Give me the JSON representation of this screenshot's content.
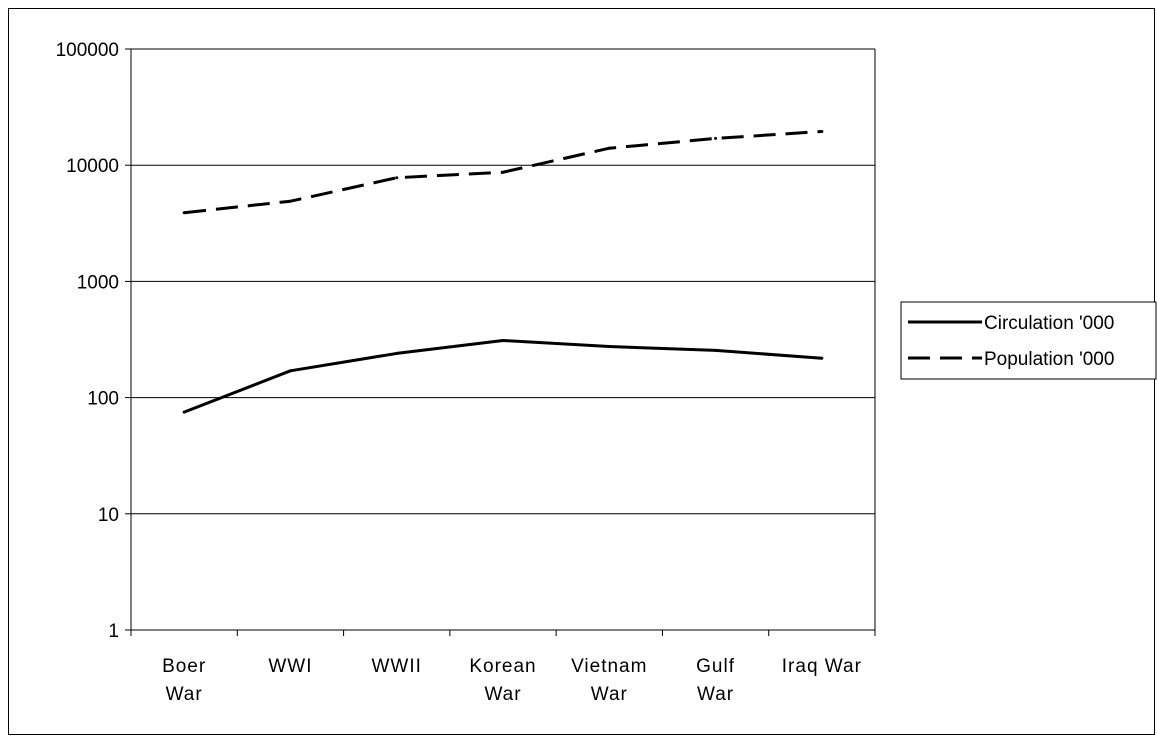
{
  "chart_data": {
    "type": "line",
    "title": "",
    "xlabel": "",
    "ylabel": "",
    "yscale": "log",
    "ylim": [
      1,
      100000
    ],
    "yticks": [
      "1",
      "10",
      "100",
      "1000",
      "10000",
      "100000"
    ],
    "yticks_values": [
      1,
      10,
      100,
      1000,
      10000,
      100000
    ],
    "categories": [
      [
        "Boer",
        "War"
      ],
      [
        "WWI"
      ],
      [
        "WWII"
      ],
      [
        "Korean",
        "War"
      ],
      [
        "Vietnam",
        "War"
      ],
      [
        "Gulf",
        "War"
      ],
      [
        "Iraq War"
      ]
    ],
    "grid": "horizontal",
    "legend_position": "right",
    "series": [
      {
        "name": "Circulation '000",
        "style": "solid",
        "color": "#000000",
        "values": [
          75,
          170,
          240,
          310,
          275,
          255,
          218
        ]
      },
      {
        "name": "Population '000",
        "style": "dashed",
        "color": "#000000",
        "values": [
          3900,
          4900,
          7800,
          8700,
          14000,
          17000,
          19500
        ]
      }
    ]
  }
}
